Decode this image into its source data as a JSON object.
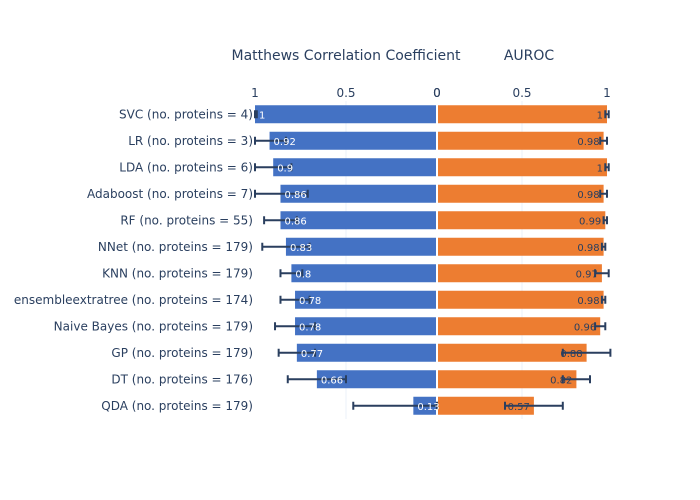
{
  "chart_data": {
    "type": "bar",
    "orientation": "horizontal",
    "layout": "butterfly",
    "categories": [
      "SVC (no. proteins = 4)",
      "LR (no. proteins = 3)",
      "LDA (no. proteins = 6)",
      "Adaboost (no. proteins = 7)",
      "RF (no. proteins = 55)",
      "NNet (no. proteins = 179)",
      "KNN (no. proteins = 179)",
      "ensembleextratree (no. proteins = 174)",
      "Naive Bayes (no. proteins = 179)",
      "GP (no. proteins = 179)",
      "DT (no. proteins = 176)",
      "QDA (no. proteins = 179)"
    ],
    "series": [
      {
        "name": "Matthews Correlation Coefficient",
        "side": "left",
        "color": "#4472c4",
        "xlim": [
          1,
          0
        ],
        "ticks": [
          "1",
          "0.5",
          "0"
        ],
        "values": [
          1,
          0.92,
          0.9,
          0.86,
          0.86,
          0.83,
          0.8,
          0.78,
          0.78,
          0.77,
          0.66,
          0.13
        ],
        "labels": [
          "1",
          "0.92",
          "0.9",
          "0.86",
          "0.86",
          "0.83",
          "0.8",
          "0.78",
          "0.78",
          "0.77",
          "0.66",
          "0.13"
        ],
        "error": [
          0.01,
          0.09,
          0.1,
          0.15,
          0.09,
          0.13,
          0.06,
          0.08,
          0.11,
          0.1,
          0.16,
          0.33
        ]
      },
      {
        "name": "AUROC",
        "side": "right",
        "color": "#ed7d31",
        "xlim": [
          0,
          1
        ],
        "ticks": [
          "0",
          "0.5",
          "1"
        ],
        "values": [
          1,
          0.98,
          1,
          0.98,
          0.99,
          0.98,
          0.97,
          0.98,
          0.96,
          0.88,
          0.82,
          0.57
        ],
        "labels": [
          "1",
          "0.98",
          "1",
          "0.98",
          "0.99",
          "0.98",
          "0.97",
          "0.98",
          "0.96",
          "0.88",
          "0.82",
          "0.57"
        ],
        "error": [
          0.01,
          0.02,
          0.01,
          0.02,
          0.01,
          0.01,
          0.04,
          0.01,
          0.03,
          0.14,
          0.08,
          0.17
        ]
      }
    ],
    "grid": true,
    "legend": "none"
  }
}
